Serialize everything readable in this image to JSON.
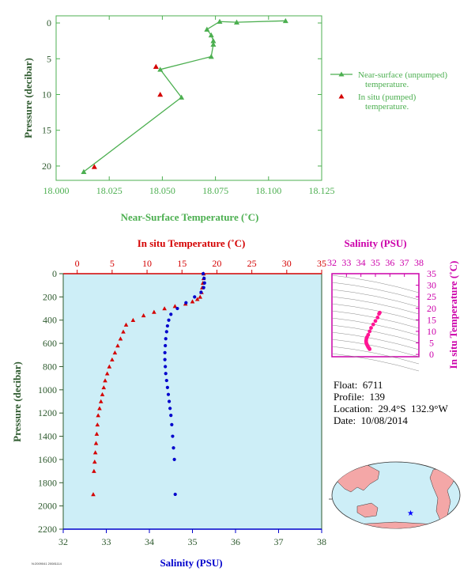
{
  "colors": {
    "green": "#4caf50",
    "red": "#d40000",
    "blue": "#0000cc",
    "magenta": "#cc00aa",
    "axis_green": "#2e5a2e",
    "panel_bg": "#cdeef7",
    "land": "#f4a7a7"
  },
  "info": {
    "float": "Float:  6711",
    "profile": "Profile:  139",
    "location": "Location:  29.4°S  132.9°W",
    "date": "Date:  10/08/2014"
  },
  "footer": "N:2009041 20081114",
  "chart_data": [
    {
      "type": "line",
      "name": "near-surface",
      "xlabel": "Near-Surface Temperature (˚C)",
      "ylabel": "Pressure (decibar)",
      "xlim": [
        18.0,
        18.125
      ],
      "ylim": [
        22,
        -1
      ],
      "xticks": [
        "18.000",
        "18.025",
        "18.050",
        "18.075",
        "18.100",
        "18.125"
      ],
      "xtick_values": [
        18.0,
        18.025,
        18.05,
        18.075,
        18.1,
        18.125
      ],
      "yticks": [
        "0",
        "5",
        "10",
        "15",
        "20"
      ],
      "ytick_values": [
        0,
        5,
        10,
        15,
        20
      ],
      "series": [
        {
          "name": "Near-surface (unpumped) temperature.",
          "color": "#4caf50",
          "marker": "triangle",
          "x": [
            18.108,
            18.085,
            18.077,
            18.071,
            18.073,
            18.074,
            18.074,
            18.073,
            18.049,
            18.059,
            18.013
          ],
          "y": [
            -0.3,
            -0.1,
            -0.2,
            0.9,
            1.7,
            2.5,
            3.0,
            4.7,
            6.5,
            10.4,
            20.8
          ]
        },
        {
          "name": "In situ (pumped) temperature.",
          "color": "#d40000",
          "marker": "triangle",
          "x": [
            18.047,
            18.049,
            18.018
          ],
          "y": [
            6.1,
            10.0,
            20.1
          ]
        }
      ]
    },
    {
      "type": "scatter",
      "name": "profile",
      "ylabel": "Pressure (decibar)",
      "ylim": [
        2200,
        0
      ],
      "yticks": [
        "0",
        "200",
        "400",
        "600",
        "800",
        "1000",
        "1200",
        "1400",
        "1600",
        "1800",
        "2000",
        "2200"
      ],
      "ytick_values": [
        0,
        200,
        400,
        600,
        800,
        1000,
        1200,
        1400,
        1600,
        1800,
        2000,
        2200
      ],
      "top_axis": {
        "label": "In situ Temperature (˚C)",
        "lim": [
          -2,
          35
        ],
        "ticks": [
          "0",
          "5",
          "10",
          "15",
          "20",
          "25",
          "30",
          "35"
        ],
        "tick_values": [
          0,
          5,
          10,
          15,
          20,
          25,
          30,
          35
        ]
      },
      "bottom_axis": {
        "label": "Salinity (PSU)",
        "lim": [
          32,
          38
        ],
        "ticks": [
          "32",
          "33",
          "34",
          "35",
          "36",
          "37",
          "38"
        ],
        "tick_values": [
          32,
          33,
          34,
          35,
          36,
          37,
          38
        ]
      },
      "series": [
        {
          "name": "temperature",
          "color": "#d40000",
          "marker": "triangle",
          "axis": "top",
          "x": [
            18.1,
            18.1,
            18.0,
            17.9,
            17.8,
            17.6,
            17.2,
            16.5,
            15.5,
            14.0,
            12.5,
            11.0,
            9.5,
            8.0,
            7.0,
            6.6,
            6.2,
            5.8,
            5.4,
            5.0,
            4.6,
            4.3,
            4.0,
            3.8,
            3.6,
            3.4,
            3.2,
            3.0,
            2.9,
            2.8,
            2.7,
            2.6,
            2.5,
            2.4,
            2.3
          ],
          "y": [
            0,
            40,
            80,
            120,
            160,
            200,
            220,
            240,
            260,
            280,
            300,
            330,
            360,
            400,
            440,
            500,
            560,
            620,
            680,
            740,
            800,
            860,
            920,
            980,
            1040,
            1100,
            1160,
            1220,
            1300,
            1380,
            1460,
            1540,
            1620,
            1700,
            1900
          ]
        },
        {
          "name": "salinity",
          "color": "#0000cc",
          "marker": "circle",
          "axis": "bottom",
          "x": [
            35.25,
            35.27,
            35.28,
            35.26,
            35.2,
            35.05,
            34.85,
            34.65,
            34.5,
            34.45,
            34.42,
            34.4,
            34.38,
            34.37,
            34.36,
            34.36,
            34.37,
            34.38,
            34.4,
            34.42,
            34.44,
            34.46,
            34.48,
            34.5,
            34.52,
            34.54,
            34.56,
            34.58,
            34.6
          ],
          "y": [
            0,
            40,
            80,
            120,
            160,
            200,
            250,
            300,
            350,
            400,
            450,
            500,
            560,
            620,
            680,
            740,
            800,
            860,
            920,
            980,
            1040,
            1100,
            1160,
            1220,
            1300,
            1400,
            1500,
            1600,
            1900
          ]
        }
      ]
    },
    {
      "type": "scatter",
      "name": "ts-diagram",
      "xlabel": "Salinity (PSU)",
      "ylabel": "In situ Temperature (˚C)",
      "xlim": [
        32,
        38
      ],
      "ylim": [
        -1,
        35
      ],
      "xticks": [
        "32",
        "33",
        "34",
        "35",
        "36",
        "37",
        "38"
      ],
      "xtick_values": [
        32,
        33,
        34,
        35,
        36,
        37,
        38
      ],
      "yticks": [
        "0",
        "5",
        "10",
        "15",
        "20",
        "25",
        "30",
        "35"
      ],
      "ytick_values": [
        0,
        5,
        10,
        15,
        20,
        25,
        30,
        35
      ],
      "series": [
        {
          "name": "ts",
          "color": "#ff1493",
          "marker": "circle",
          "x": [
            35.3,
            35.25,
            35.15,
            35.0,
            34.85,
            34.7,
            34.6,
            34.5,
            34.42,
            34.38,
            34.36,
            34.36,
            34.38,
            34.42,
            34.46,
            34.5,
            34.55,
            34.6
          ],
          "y": [
            18.1,
            17.6,
            16.0,
            14.5,
            13.0,
            11.5,
            10.0,
            8.5,
            7.5,
            6.8,
            6.0,
            5.4,
            4.8,
            4.2,
            3.7,
            3.2,
            2.8,
            2.3
          ]
        }
      ]
    }
  ]
}
